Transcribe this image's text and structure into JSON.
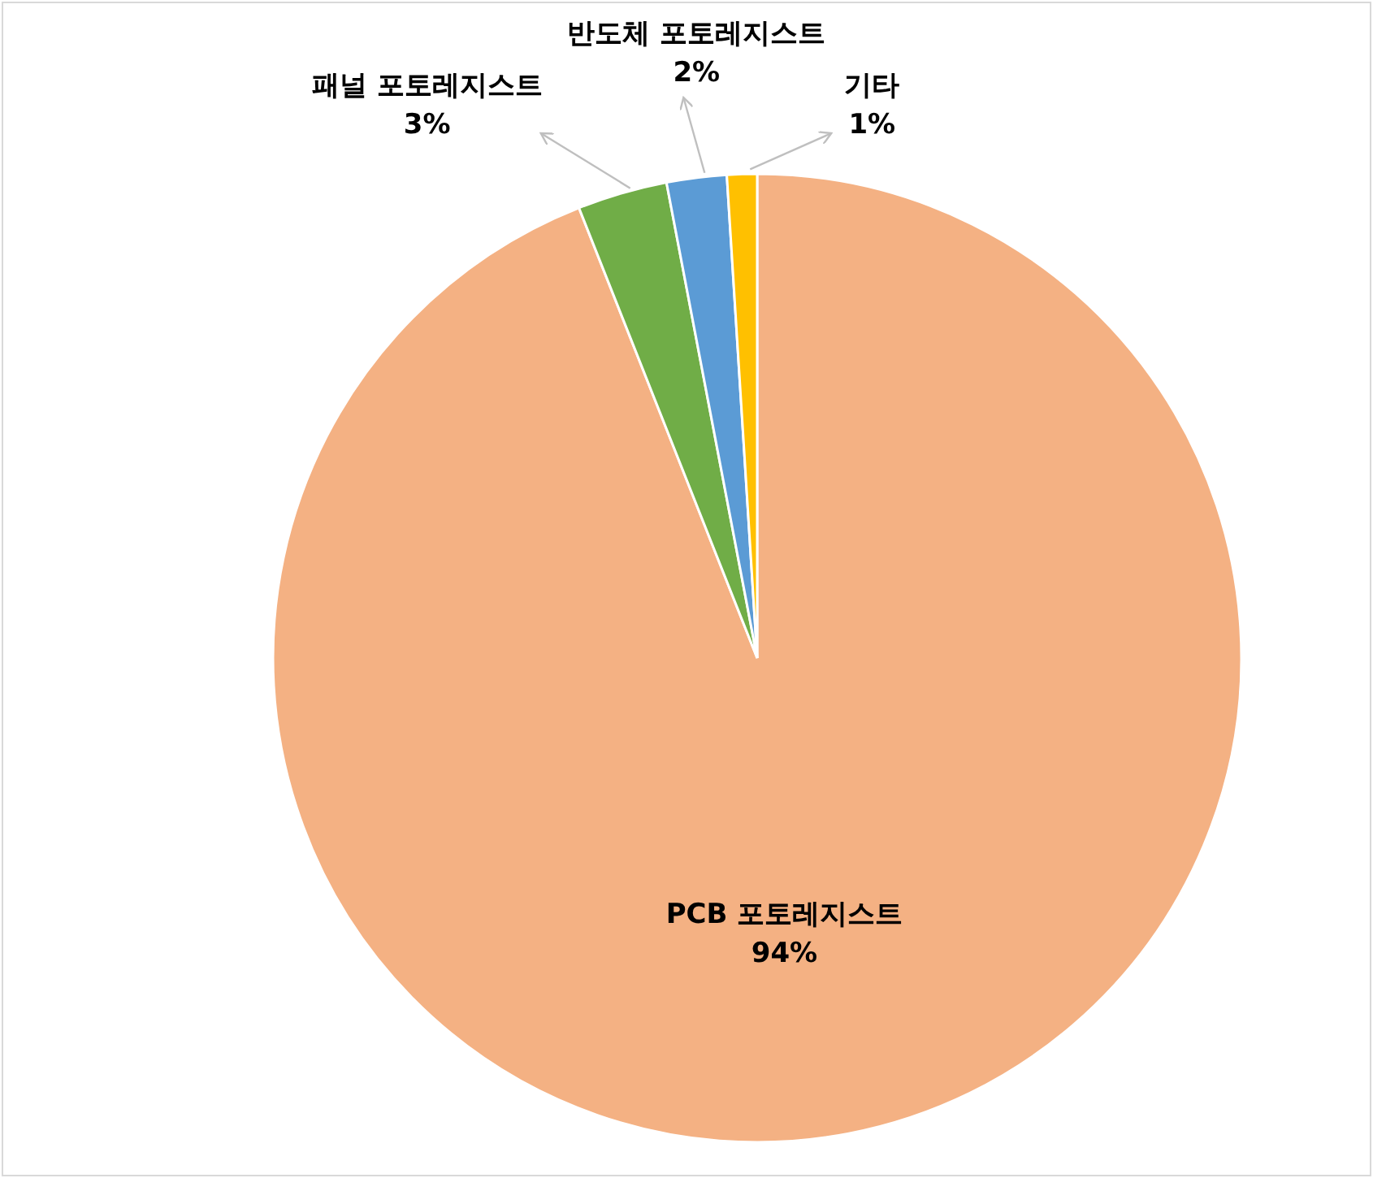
{
  "chart_data": {
    "type": "pie",
    "categories": [
      "PCB 포토레지스트",
      "패널 포토레지스트",
      "반도체 포토레지스트",
      "기타"
    ],
    "values": [
      94,
      3,
      2,
      1
    ],
    "colors": [
      "#f4b183",
      "#70ad47",
      "#5b9bd5",
      "#ffc000"
    ],
    "value_labels": [
      "94%",
      "3%",
      "2%",
      "1%"
    ]
  }
}
